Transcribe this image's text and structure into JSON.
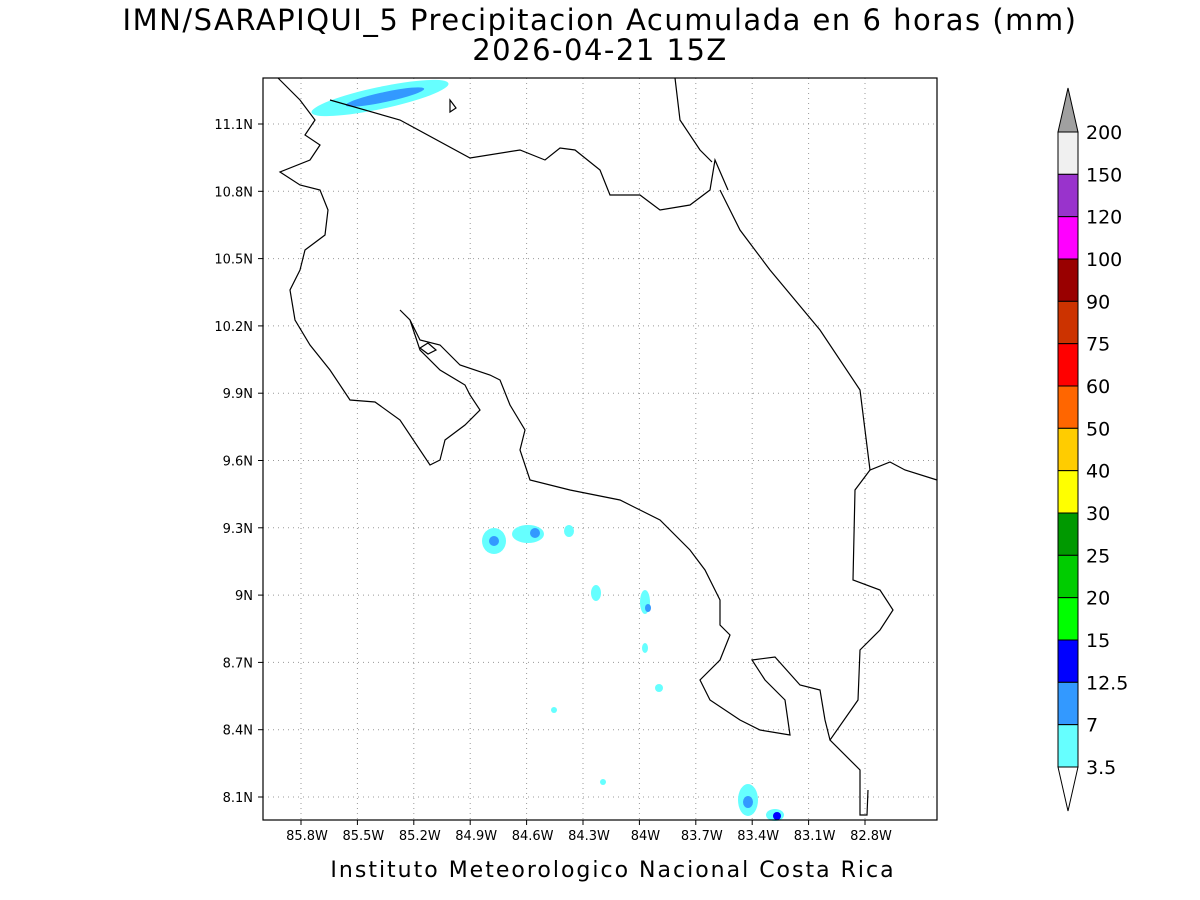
{
  "title": "IMN/SARAPIQUI_5 Precipitacion Acumulada en 6 horas (mm)",
  "subtitle": "2026-04-21 15Z",
  "footer": "Instituto Meteorologico Nacional Costa Rica",
  "map": {
    "lat_labels": [
      "11.1N",
      "10.8N",
      "10.5N",
      "10.2N",
      "9.9N",
      "9.6N",
      "9.3N",
      "9N",
      "8.7N",
      "8.4N",
      "8.1N"
    ],
    "lon_labels": [
      "85.8W",
      "85.5W",
      "85.2W",
      "84.9W",
      "84.6W",
      "84.3W",
      "84W",
      "83.7W",
      "83.4W",
      "83.1W",
      "82.8W"
    ]
  },
  "colorbar": {
    "labels": [
      "200",
      "150",
      "120",
      "100",
      "90",
      "75",
      "60",
      "50",
      "40",
      "30",
      "25",
      "20",
      "15",
      "12.5",
      "7",
      "3.5"
    ],
    "colors": [
      "#a0a0a0",
      "#f0f0f0",
      "#9933cc",
      "#ff00ff",
      "#990000",
      "#cc3300",
      "#ff0000",
      "#ff6600",
      "#ffcc00",
      "#ffff00",
      "#009900",
      "#00cc00",
      "#00ff00",
      "#0000ff",
      "#3399ff",
      "#66ffff",
      "#ffffff"
    ]
  }
}
